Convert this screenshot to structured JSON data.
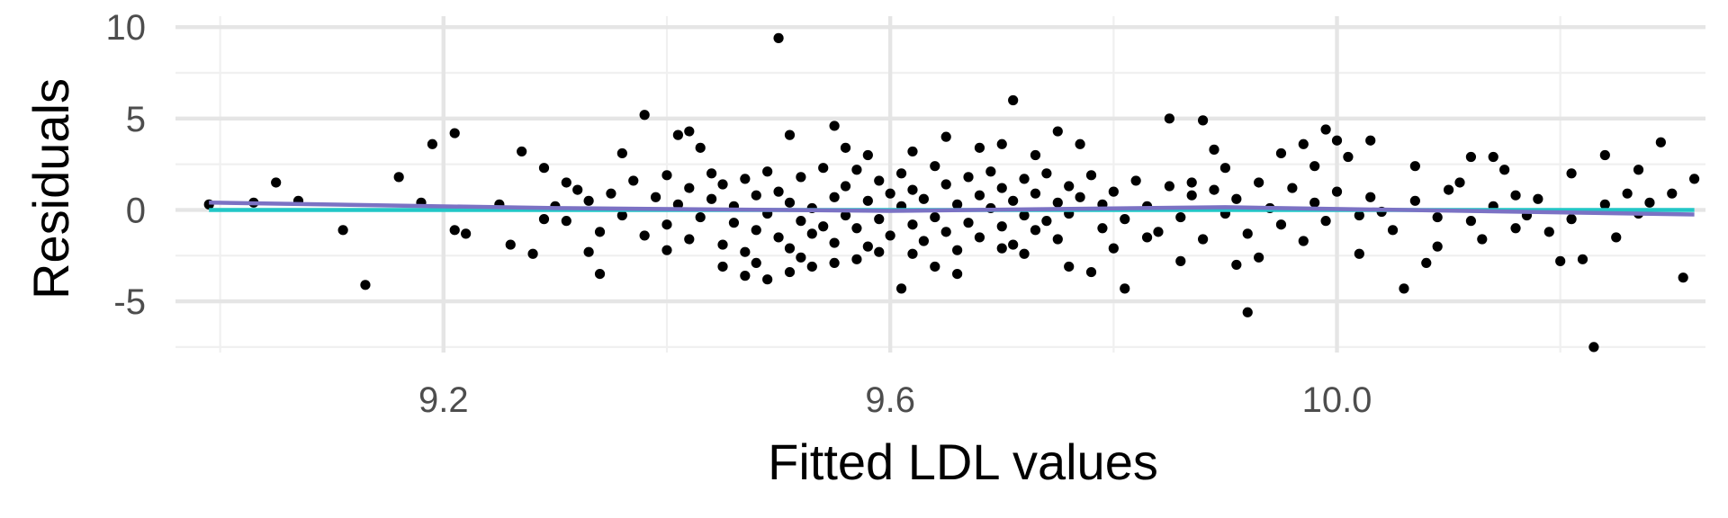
{
  "chart_data": {
    "type": "scatter",
    "title": "",
    "xlabel": "Fitted LDL values",
    "ylabel": "Residuals",
    "xlim": [
      8.96,
      10.33
    ],
    "ylim": [
      -7.8,
      10.6
    ],
    "x_ticks": [
      9.2,
      9.6,
      10.0
    ],
    "x_tick_labels": [
      "9.2",
      "9.6",
      "10.0"
    ],
    "x_minor_ticks": [
      9.0,
      9.4,
      9.8,
      10.2
    ],
    "y_ticks": [
      -5,
      0,
      5,
      10
    ],
    "y_tick_labels": [
      "-5",
      "0",
      "5",
      "10"
    ],
    "y_minor_ticks": [
      -7.5,
      -2.5,
      2.5,
      7.5
    ],
    "grid": true,
    "points": [
      [
        9.03,
        0.4
      ],
      [
        8.99,
        0.3
      ],
      [
        9.05,
        1.5
      ],
      [
        9.07,
        0.5
      ],
      [
        9.11,
        -1.1
      ],
      [
        9.13,
        -4.1
      ],
      [
        9.16,
        1.8
      ],
      [
        9.18,
        0.4
      ],
      [
        9.19,
        3.6
      ],
      [
        9.21,
        4.2
      ],
      [
        9.21,
        -1.1
      ],
      [
        9.22,
        -1.3
      ],
      [
        9.25,
        0.3
      ],
      [
        9.26,
        -1.9
      ],
      [
        9.27,
        3.2
      ],
      [
        9.28,
        -2.4
      ],
      [
        9.29,
        2.3
      ],
      [
        9.29,
        -0.5
      ],
      [
        9.31,
        1.5
      ],
      [
        9.33,
        -2.3
      ],
      [
        9.34,
        -3.5
      ],
      [
        9.36,
        3.1
      ],
      [
        9.38,
        5.2
      ],
      [
        9.4,
        -2.2
      ],
      [
        9.41,
        4.1
      ],
      [
        9.42,
        4.3
      ],
      [
        9.43,
        3.4
      ],
      [
        9.45,
        -3.1
      ],
      [
        9.47,
        -3.6
      ],
      [
        9.48,
        -2.9
      ],
      [
        9.49,
        -3.8
      ],
      [
        9.51,
        -3.4
      ],
      [
        9.52,
        -2.6
      ],
      [
        9.53,
        -3.1
      ],
      [
        9.55,
        -2.9
      ],
      [
        9.57,
        -2.7
      ],
      [
        9.59,
        -2.3
      ],
      [
        9.62,
        -2.4
      ],
      [
        9.64,
        -3.1
      ],
      [
        9.66,
        -3.5
      ],
      [
        9.7,
        -2.1
      ],
      [
        9.72,
        -2.4
      ],
      [
        9.76,
        -3.1
      ],
      [
        9.78,
        -3.4
      ],
      [
        9.5,
        9.4
      ],
      [
        9.51,
        4.1
      ],
      [
        9.55,
        4.6
      ],
      [
        9.56,
        3.4
      ],
      [
        9.58,
        3.0
      ],
      [
        9.62,
        3.2
      ],
      [
        9.65,
        4.0
      ],
      [
        9.68,
        3.4
      ],
      [
        9.7,
        3.6
      ],
      [
        9.71,
        6.0
      ],
      [
        9.73,
        3.0
      ],
      [
        9.75,
        4.3
      ],
      [
        9.77,
        3.6
      ],
      [
        9.61,
        -4.3
      ],
      [
        9.8,
        -2.1
      ],
      [
        9.81,
        -4.3
      ],
      [
        9.83,
        -1.5
      ],
      [
        9.85,
        5.0
      ],
      [
        9.86,
        -2.8
      ],
      [
        9.87,
        1.5
      ],
      [
        9.88,
        4.9
      ],
      [
        9.89,
        3.3
      ],
      [
        9.9,
        2.3
      ],
      [
        9.91,
        -3.0
      ],
      [
        9.92,
        -5.6
      ],
      [
        9.93,
        -2.6
      ],
      [
        9.95,
        3.1
      ],
      [
        9.97,
        3.6
      ],
      [
        9.98,
        2.4
      ],
      [
        9.99,
        4.4
      ],
      [
        10.0,
        3.8
      ],
      [
        10.01,
        2.9
      ],
      [
        10.02,
        -2.4
      ],
      [
        10.03,
        3.8
      ],
      [
        10.04,
        -0.1
      ],
      [
        10.06,
        -4.3
      ],
      [
        10.07,
        2.4
      ],
      [
        10.08,
        -2.9
      ],
      [
        10.09,
        -2.0
      ],
      [
        10.11,
        1.5
      ],
      [
        10.12,
        2.9
      ],
      [
        10.13,
        -1.6
      ],
      [
        10.14,
        2.9
      ],
      [
        10.15,
        2.2
      ],
      [
        10.16,
        0.8
      ],
      [
        10.17,
        -0.3
      ],
      [
        10.19,
        -1.2
      ],
      [
        10.2,
        -2.8
      ],
      [
        10.21,
        2.0
      ],
      [
        10.22,
        -2.7
      ],
      [
        10.23,
        -7.5
      ],
      [
        10.24,
        3.0
      ],
      [
        10.25,
        -1.5
      ],
      [
        10.26,
        0.9
      ],
      [
        10.27,
        2.2
      ],
      [
        10.28,
        0.4
      ],
      [
        10.29,
        3.7
      ],
      [
        10.3,
        0.9
      ],
      [
        10.31,
        -3.7
      ],
      [
        10.32,
        1.7
      ],
      [
        9.3,
        0.2
      ],
      [
        9.31,
        -0.6
      ],
      [
        9.32,
        1.1
      ],
      [
        9.33,
        0.5
      ],
      [
        9.34,
        -1.2
      ],
      [
        9.35,
        0.9
      ],
      [
        9.36,
        -0.3
      ],
      [
        9.37,
        1.6
      ],
      [
        9.38,
        -1.4
      ],
      [
        9.39,
        0.7
      ],
      [
        9.4,
        1.9
      ],
      [
        9.4,
        -0.8
      ],
      [
        9.41,
        0.3
      ],
      [
        9.42,
        -1.6
      ],
      [
        9.42,
        1.2
      ],
      [
        9.43,
        -0.4
      ],
      [
        9.44,
        2.0
      ],
      [
        9.44,
        0.6
      ],
      [
        9.45,
        -1.9
      ],
      [
        9.45,
        1.4
      ],
      [
        9.46,
        -0.7
      ],
      [
        9.46,
        0.2
      ],
      [
        9.47,
        -2.3
      ],
      [
        9.47,
        1.7
      ],
      [
        9.48,
        -1.1
      ],
      [
        9.48,
        0.8
      ],
      [
        9.49,
        2.1
      ],
      [
        9.49,
        -0.2
      ],
      [
        9.5,
        -1.5
      ],
      [
        9.5,
        1.0
      ],
      [
        9.51,
        0.4
      ],
      [
        9.51,
        -2.1
      ],
      [
        9.52,
        1.8
      ],
      [
        9.52,
        -0.6
      ],
      [
        9.53,
        0.1
      ],
      [
        9.53,
        -1.3
      ],
      [
        9.54,
        2.3
      ],
      [
        9.54,
        -0.9
      ],
      [
        9.55,
        0.7
      ],
      [
        9.55,
        -1.8
      ],
      [
        9.56,
        1.3
      ],
      [
        9.56,
        -0.3
      ],
      [
        9.57,
        2.2
      ],
      [
        9.57,
        -1.0
      ],
      [
        9.58,
        0.5
      ],
      [
        9.58,
        -2.0
      ],
      [
        9.59,
        1.6
      ],
      [
        9.59,
        -0.5
      ],
      [
        9.6,
        0.9
      ],
      [
        9.6,
        -1.4
      ],
      [
        9.61,
        2.0
      ],
      [
        9.61,
        0.2
      ],
      [
        9.62,
        -0.8
      ],
      [
        9.62,
        1.1
      ],
      [
        9.63,
        -1.7
      ],
      [
        9.63,
        0.6
      ],
      [
        9.64,
        2.4
      ],
      [
        9.64,
        -0.4
      ],
      [
        9.65,
        1.4
      ],
      [
        9.65,
        -1.2
      ],
      [
        9.66,
        0.3
      ],
      [
        9.66,
        -2.2
      ],
      [
        9.67,
        1.8
      ],
      [
        9.67,
        -0.7
      ],
      [
        9.68,
        0.8
      ],
      [
        9.68,
        -1.5
      ],
      [
        9.69,
        2.1
      ],
      [
        9.69,
        0.1
      ],
      [
        9.7,
        -0.9
      ],
      [
        9.7,
        1.2
      ],
      [
        9.71,
        -1.9
      ],
      [
        9.71,
        0.5
      ],
      [
        9.72,
        1.7
      ],
      [
        9.72,
        -0.3
      ],
      [
        9.73,
        0.9
      ],
      [
        9.73,
        -1.1
      ],
      [
        9.74,
        2.0
      ],
      [
        9.74,
        -0.6
      ],
      [
        9.75,
        0.4
      ],
      [
        9.75,
        -1.6
      ],
      [
        9.76,
        1.3
      ],
      [
        9.76,
        -0.2
      ],
      [
        9.77,
        0.7
      ],
      [
        9.78,
        1.9
      ],
      [
        9.79,
        -1.0
      ],
      [
        9.79,
        0.3
      ],
      [
        9.8,
        1.0
      ],
      [
        9.81,
        -0.5
      ],
      [
        9.82,
        1.6
      ],
      [
        9.83,
        0.2
      ],
      [
        9.84,
        -1.2
      ],
      [
        9.85,
        1.3
      ],
      [
        9.86,
        -0.4
      ],
      [
        9.87,
        0.8
      ],
      [
        9.88,
        -1.6
      ],
      [
        9.89,
        1.1
      ],
      [
        9.9,
        -0.2
      ],
      [
        9.91,
        0.6
      ],
      [
        9.92,
        -1.3
      ],
      [
        9.93,
        1.5
      ],
      [
        9.94,
        0.1
      ],
      [
        9.95,
        -0.8
      ],
      [
        9.96,
        1.2
      ],
      [
        9.97,
        -1.7
      ],
      [
        9.98,
        0.4
      ],
      [
        9.99,
        -0.6
      ],
      [
        10.0,
        1.0
      ],
      [
        10.02,
        -0.3
      ],
      [
        10.03,
        0.7
      ],
      [
        10.05,
        -1.1
      ],
      [
        10.07,
        0.5
      ],
      [
        10.09,
        -0.4
      ],
      [
        10.1,
        1.1
      ],
      [
        10.12,
        -0.6
      ],
      [
        10.14,
        0.2
      ],
      [
        10.16,
        -1.0
      ],
      [
        10.18,
        0.6
      ],
      [
        10.21,
        -0.5
      ],
      [
        10.24,
        0.3
      ],
      [
        10.27,
        -0.2
      ]
    ],
    "smooth_lines": [
      {
        "color": "#22c7c7",
        "x": [
          8.99,
          10.32
        ],
        "y": [
          0.0,
          0.0
        ]
      },
      {
        "color": "#7b72c4",
        "x": [
          8.99,
          9.3,
          9.6,
          9.9,
          10.32
        ],
        "y": [
          0.4,
          0.1,
          -0.05,
          0.15,
          -0.25
        ]
      }
    ],
    "colors": {
      "points": "#000000",
      "grid_major": "#e5e5e5",
      "grid_minor": "#f0f0f0"
    }
  }
}
